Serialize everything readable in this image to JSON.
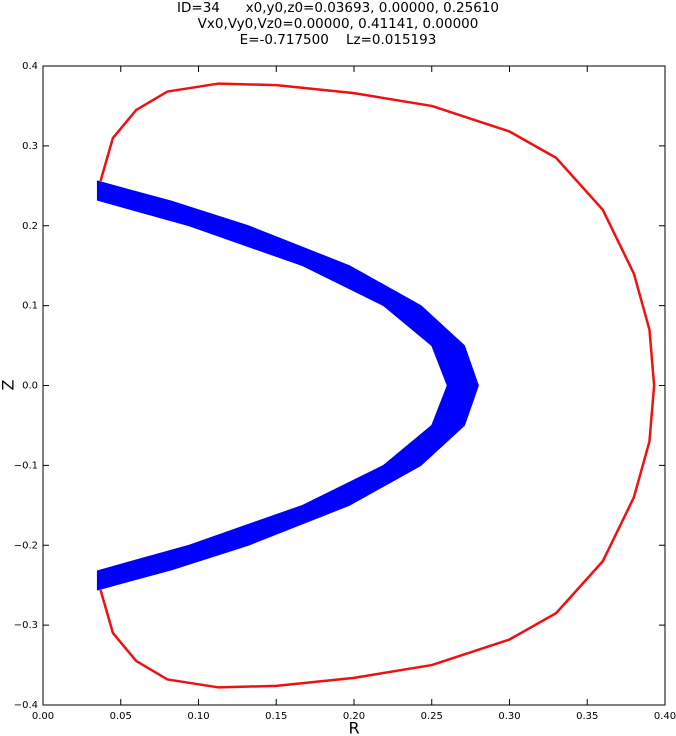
{
  "chart_data": {
    "type": "line",
    "title": [
      "ID=34      x0,y0,z0=0.03693, 0.00000, 0.25610",
      "Vx0,Vy0,Vz0=0.00000, 0.41141, 0.00000",
      "E=-0.717500    Lz=0.015193"
    ],
    "xlabel": "R",
    "ylabel": "Z",
    "xlim": [
      0,
      0.4
    ],
    "ylim": [
      -0.4,
      0.4
    ],
    "xticks": [
      {
        "value": 0,
        "label": "0.00"
      },
      {
        "value": 0.05,
        "label": "0.05"
      },
      {
        "value": 0.1,
        "label": "0.10"
      },
      {
        "value": 0.15,
        "label": "0.15"
      },
      {
        "value": 0.2,
        "label": "0.20"
      },
      {
        "value": 0.25,
        "label": "0.25"
      },
      {
        "value": 0.3,
        "label": "0.30"
      },
      {
        "value": 0.35,
        "label": "0.35"
      },
      {
        "value": 0.4,
        "label": "0.40"
      }
    ],
    "yticks": [
      {
        "value": -0.4,
        "label": "−0.4"
      },
      {
        "value": -0.3,
        "label": "−0.3"
      },
      {
        "value": -0.2,
        "label": "−0.2"
      },
      {
        "value": -0.1,
        "label": "−0.1"
      },
      {
        "value": 0,
        "label": "0.0"
      },
      0.1,
      0.2,
      0.3,
      0.4
    ],
    "series": [
      {
        "color": "#ee1111",
        "fill": false,
        "x": [
          0.037,
          0.045,
          0.06,
          0.08,
          0.113,
          0.15,
          0.2,
          0.25,
          0.3,
          0.33,
          0.36,
          0.38,
          0.39,
          0.393,
          0.39,
          0.38,
          0.36,
          0.33,
          0.3,
          0.25,
          0.2,
          0.15,
          0.113,
          0.08,
          0.06,
          0.045,
          0.037
        ],
        "values": [
          0.256,
          0.31,
          0.345,
          0.368,
          0.378,
          0.376,
          0.366,
          0.35,
          0.318,
          0.285,
          0.22,
          0.14,
          0.07,
          0,
          -0.07,
          -0.14,
          -0.22,
          -0.285,
          -0.318,
          -0.35,
          -0.366,
          -0.376,
          -0.378,
          -0.368,
          -0.345,
          -0.31,
          -0.256
        ]
      },
      {
        "color": "#0000ff",
        "fill": true,
        "x": [
          0.035,
          0.084,
          0.132,
          0.197,
          0.243,
          0.271,
          0.28,
          0.271,
          0.243,
          0.197,
          0.132,
          0.084,
          0.035,
          0.035,
          0.094,
          0.167,
          0.219,
          0.25,
          0.26,
          0.25,
          0.219,
          0.167,
          0.094,
          0.035
        ],
        "values": [
          0.256,
          0.23,
          0.2,
          0.15,
          0.1,
          0.05,
          0,
          -0.05,
          -0.1,
          -0.15,
          -0.2,
          -0.23,
          -0.256,
          -0.232,
          -0.2,
          -0.15,
          -0.1,
          -0.05,
          0,
          0.05,
          0.1,
          0.15,
          0.2,
          0.232
        ]
      }
    ]
  }
}
